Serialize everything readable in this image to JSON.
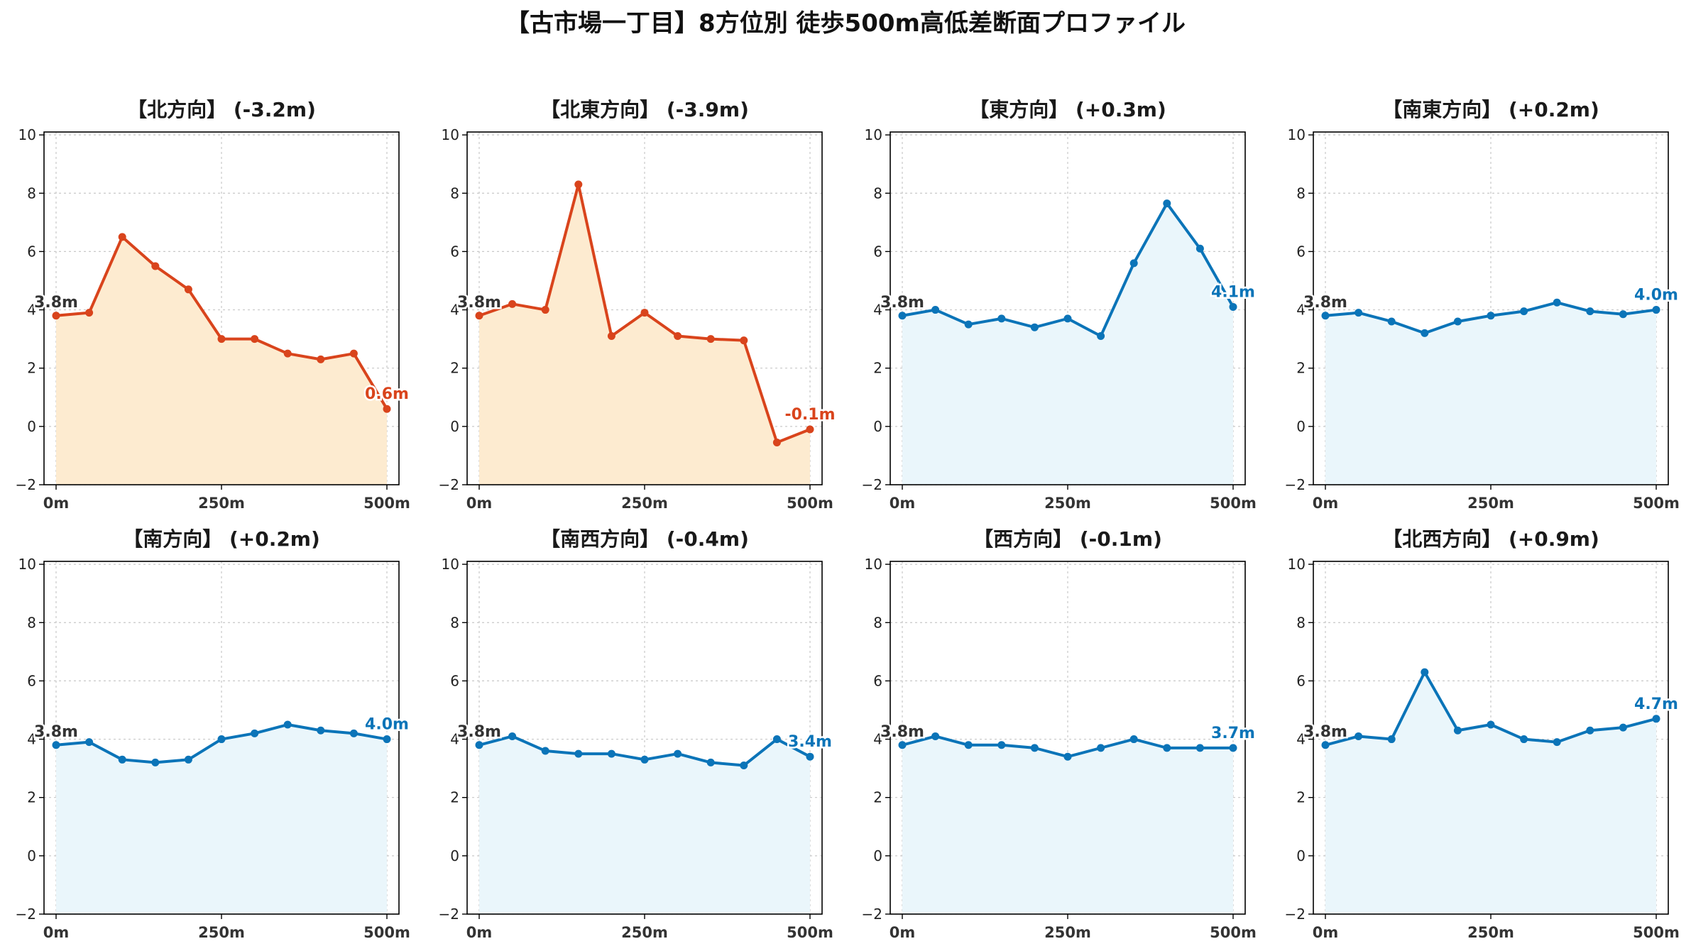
{
  "title": "【古市場一丁目】8方位別 徒歩500m高低差断面プロファイル",
  "colors": {
    "down_line": "#d9441c",
    "down_fill": "#fdebd0",
    "up_line": "#0b74b8",
    "up_fill": "#eaf6fb",
    "start_label": "#333333"
  },
  "chart_data": [
    {
      "type": "area",
      "title": "【北方向】 (-3.2m)",
      "x": [
        0,
        50,
        100,
        150,
        200,
        250,
        300,
        350,
        400,
        450,
        500
      ],
      "y": [
        3.8,
        3.9,
        6.5,
        5.5,
        4.7,
        3.0,
        3.0,
        2.5,
        2.3,
        2.5,
        0.6
      ],
      "start_label": "3.8m",
      "end_label": "0.6m",
      "trend": "down",
      "xticks": [
        "0m",
        "250m",
        "500m"
      ],
      "yticks": [
        "−2",
        "0",
        "2",
        "4",
        "6",
        "8",
        "10"
      ],
      "ylim": [
        -2,
        10.1
      ],
      "grid": true
    },
    {
      "type": "area",
      "title": "【北東方向】 (-3.9m)",
      "x": [
        0,
        50,
        100,
        150,
        200,
        250,
        300,
        350,
        400,
        450,
        500
      ],
      "y": [
        3.8,
        4.2,
        4.0,
        8.3,
        3.1,
        3.9,
        3.1,
        3.0,
        2.95,
        -0.55,
        -0.1
      ],
      "start_label": "3.8m",
      "end_label": "-0.1m",
      "trend": "down",
      "xticks": [
        "0m",
        "250m",
        "500m"
      ],
      "yticks": [
        "−2",
        "0",
        "2",
        "4",
        "6",
        "8",
        "10"
      ],
      "ylim": [
        -2,
        10.1
      ],
      "grid": true
    },
    {
      "type": "area",
      "title": "【東方向】 (+0.3m)",
      "x": [
        0,
        50,
        100,
        150,
        200,
        250,
        300,
        350,
        400,
        450,
        500
      ],
      "y": [
        3.8,
        4.0,
        3.5,
        3.7,
        3.4,
        3.7,
        3.1,
        5.6,
        7.65,
        6.1,
        4.1
      ],
      "start_label": "3.8m",
      "end_label": "4.1m",
      "trend": "up",
      "xticks": [
        "0m",
        "250m",
        "500m"
      ],
      "yticks": [
        "−2",
        "0",
        "2",
        "4",
        "6",
        "8",
        "10"
      ],
      "ylim": [
        -2,
        10.1
      ],
      "grid": true
    },
    {
      "type": "area",
      "title": "【南東方向】 (+0.2m)",
      "x": [
        0,
        50,
        100,
        150,
        200,
        250,
        300,
        350,
        400,
        450,
        500
      ],
      "y": [
        3.8,
        3.9,
        3.6,
        3.2,
        3.6,
        3.8,
        3.95,
        4.25,
        3.95,
        3.85,
        4.0
      ],
      "start_label": "3.8m",
      "end_label": "4.0m",
      "trend": "up",
      "xticks": [
        "0m",
        "250m",
        "500m"
      ],
      "yticks": [
        "−2",
        "0",
        "2",
        "4",
        "6",
        "8",
        "10"
      ],
      "ylim": [
        -2,
        10.1
      ],
      "grid": true
    },
    {
      "type": "area",
      "title": "【南方向】 (+0.2m)",
      "x": [
        0,
        50,
        100,
        150,
        200,
        250,
        300,
        350,
        400,
        450,
        500
      ],
      "y": [
        3.8,
        3.9,
        3.3,
        3.2,
        3.3,
        4.0,
        4.2,
        4.5,
        4.3,
        4.2,
        4.0
      ],
      "start_label": "3.8m",
      "end_label": "4.0m",
      "trend": "up",
      "xticks": [
        "0m",
        "250m",
        "500m"
      ],
      "yticks": [
        "−2",
        "0",
        "2",
        "4",
        "6",
        "8",
        "10"
      ],
      "ylim": [
        -2,
        10.1
      ],
      "grid": true
    },
    {
      "type": "area",
      "title": "【南西方向】 (-0.4m)",
      "x": [
        0,
        50,
        100,
        150,
        200,
        250,
        300,
        350,
        400,
        450,
        500
      ],
      "y": [
        3.8,
        4.1,
        3.6,
        3.5,
        3.5,
        3.3,
        3.5,
        3.2,
        3.1,
        4.0,
        3.4
      ],
      "start_label": "3.8m",
      "end_label": "3.4m",
      "trend": "up",
      "xticks": [
        "0m",
        "250m",
        "500m"
      ],
      "yticks": [
        "−2",
        "0",
        "2",
        "4",
        "6",
        "8",
        "10"
      ],
      "ylim": [
        -2,
        10.1
      ],
      "grid": true
    },
    {
      "type": "area",
      "title": "【西方向】 (-0.1m)",
      "x": [
        0,
        50,
        100,
        150,
        200,
        250,
        300,
        350,
        400,
        450,
        500
      ],
      "y": [
        3.8,
        4.1,
        3.8,
        3.8,
        3.7,
        3.4,
        3.7,
        4.0,
        3.7,
        3.7,
        3.7
      ],
      "start_label": "3.8m",
      "end_label": "3.7m",
      "trend": "up",
      "xticks": [
        "0m",
        "250m",
        "500m"
      ],
      "yticks": [
        "−2",
        "0",
        "2",
        "4",
        "6",
        "8",
        "10"
      ],
      "ylim": [
        -2,
        10.1
      ],
      "grid": true
    },
    {
      "type": "area",
      "title": "【北西方向】 (+0.9m)",
      "x": [
        0,
        50,
        100,
        150,
        200,
        250,
        300,
        350,
        400,
        450,
        500
      ],
      "y": [
        3.8,
        4.1,
        4.0,
        6.3,
        4.3,
        4.5,
        4.0,
        3.9,
        4.3,
        4.4,
        4.7
      ],
      "start_label": "3.8m",
      "end_label": "4.7m",
      "trend": "up",
      "xticks": [
        "0m",
        "250m",
        "500m"
      ],
      "yticks": [
        "−2",
        "0",
        "2",
        "4",
        "6",
        "8",
        "10"
      ],
      "ylim": [
        -2,
        10.1
      ],
      "grid": true
    }
  ]
}
